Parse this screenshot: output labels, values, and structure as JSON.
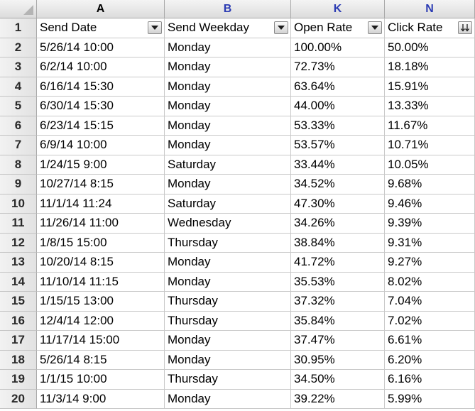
{
  "columns": [
    {
      "letter": "A"
    },
    {
      "letter": "B"
    },
    {
      "letter": "K"
    },
    {
      "letter": "N"
    }
  ],
  "header_row": {
    "row_number": "1",
    "cells": [
      "Send Date",
      "Send Weekday",
      "Open Rate",
      "Click Rate"
    ]
  },
  "rows": [
    {
      "num": "2",
      "cells": [
        "5/26/14 10:00",
        "Monday",
        "100.00%",
        "50.00%"
      ]
    },
    {
      "num": "3",
      "cells": [
        "6/2/14 10:00",
        "Monday",
        "72.73%",
        "18.18%"
      ]
    },
    {
      "num": "4",
      "cells": [
        "6/16/14 15:30",
        "Monday",
        "63.64%",
        "15.91%"
      ]
    },
    {
      "num": "5",
      "cells": [
        "6/30/14 15:30",
        "Monday",
        "44.00%",
        "13.33%"
      ]
    },
    {
      "num": "6",
      "cells": [
        "6/23/14 15:15",
        "Monday",
        "53.33%",
        "11.67%"
      ]
    },
    {
      "num": "7",
      "cells": [
        "6/9/14 10:00",
        "Monday",
        "53.57%",
        "10.71%"
      ]
    },
    {
      "num": "8",
      "cells": [
        "1/24/15 9:00",
        "Saturday",
        "33.44%",
        "10.05%"
      ]
    },
    {
      "num": "9",
      "cells": [
        "10/27/14 8:15",
        "Monday",
        "34.52%",
        "9.68%"
      ]
    },
    {
      "num": "10",
      "cells": [
        "11/1/14 11:24",
        "Saturday",
        "47.30%",
        "9.46%"
      ]
    },
    {
      "num": "11",
      "cells": [
        "11/26/14 11:00",
        "Wednesday",
        "34.26%",
        "9.39%"
      ]
    },
    {
      "num": "12",
      "cells": [
        "1/8/15 15:00",
        "Thursday",
        "38.84%",
        "9.31%"
      ]
    },
    {
      "num": "13",
      "cells": [
        "10/20/14 8:15",
        "Monday",
        "41.72%",
        "9.27%"
      ]
    },
    {
      "num": "14",
      "cells": [
        "11/10/14 11:15",
        "Monday",
        "35.53%",
        "8.02%"
      ]
    },
    {
      "num": "15",
      "cells": [
        "1/15/15 13:00",
        "Thursday",
        "37.32%",
        "7.04%"
      ]
    },
    {
      "num": "16",
      "cells": [
        "12/4/14 12:00",
        "Thursday",
        "35.84%",
        "7.02%"
      ]
    },
    {
      "num": "17",
      "cells": [
        "11/17/14 15:00",
        "Monday",
        "37.47%",
        "6.61%"
      ]
    },
    {
      "num": "18",
      "cells": [
        "5/26/14 8:15",
        "Monday",
        "30.95%",
        "6.20%"
      ]
    },
    {
      "num": "19",
      "cells": [
        "1/1/15 10:00",
        "Thursday",
        "34.50%",
        "6.16%"
      ]
    },
    {
      "num": "20",
      "cells": [
        "11/3/14 9:00",
        "Monday",
        "39.22%",
        "5.99%"
      ]
    }
  ],
  "icons": {
    "filter": "chevron-down-icon",
    "sort": "sort-descending-icon",
    "select_all": "select-all-triangle-icon"
  },
  "colors": {
    "selected_column_letter": "#2b3bb3",
    "grid_line": "#c9c9c9"
  }
}
